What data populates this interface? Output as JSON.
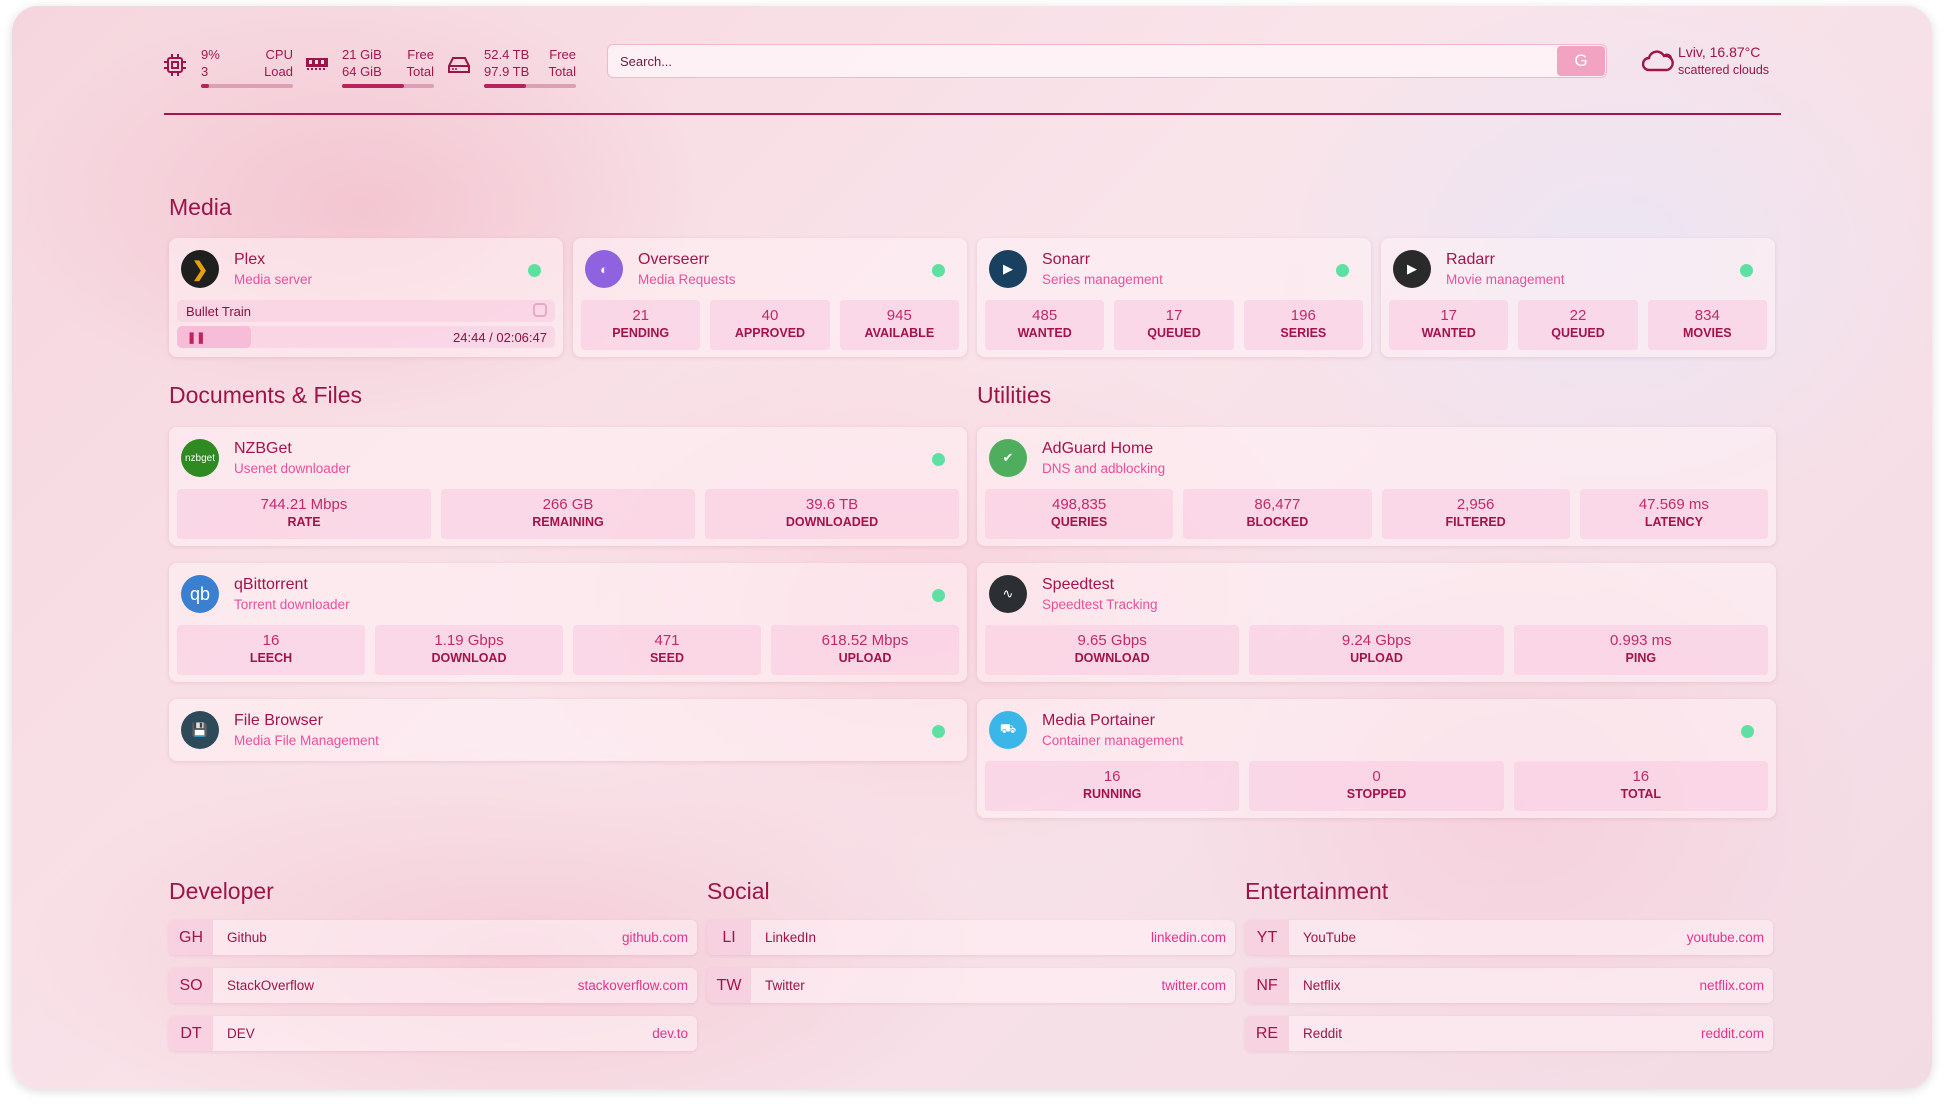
{
  "header": {
    "cpu": {
      "value": "9%",
      "value2": "3",
      "label": "CPU",
      "label2": "Load",
      "percent": 9
    },
    "memory": {
      "value": "21 GiB",
      "value2": "64 GiB",
      "label": "Free",
      "label2": "Total",
      "percent": 67
    },
    "disk": {
      "value": "52.4 TB",
      "value2": "97.9 TB",
      "label": "Free",
      "label2": "Total",
      "percent": 46
    },
    "search": {
      "placeholder": "Search...",
      "button": "G"
    },
    "weather": {
      "location": "Lviv, 16.87°C",
      "condition": "scattered clouds"
    }
  },
  "sections": {
    "media": "Media",
    "docs": "Documents & Files",
    "utilities": "Utilities",
    "developer": "Developer",
    "social": "Social",
    "entertainment": "Entertainment"
  },
  "media": [
    {
      "title": "Plex",
      "subtitle": "Media server",
      "icon": "plex-icon",
      "color": "#1f1f1f",
      "glyph": "❯",
      "status": "#5fe0a3",
      "now_playing": {
        "title": "Bullet Train",
        "time": "24:44 / 02:06:47",
        "progress": 19.5
      }
    },
    {
      "title": "Overseerr",
      "subtitle": "Media Requests",
      "icon": "overseerr-icon",
      "color": "#8f63e0",
      "glyph": "◐",
      "status": "#5fe0a3",
      "stats": [
        {
          "v": "21",
          "l": "PENDING"
        },
        {
          "v": "40",
          "l": "APPROVED"
        },
        {
          "v": "945",
          "l": "AVAILABLE"
        }
      ]
    },
    {
      "title": "Sonarr",
      "subtitle": "Series management",
      "icon": "sonarr-icon",
      "color": "#1a4060",
      "glyph": "▶",
      "status": "#5fe0a3",
      "stats": [
        {
          "v": "485",
          "l": "WANTED"
        },
        {
          "v": "17",
          "l": "QUEUED"
        },
        {
          "v": "196",
          "l": "SERIES"
        }
      ]
    },
    {
      "title": "Radarr",
      "subtitle": "Movie management",
      "icon": "radarr-icon",
      "color": "#2a2a2a",
      "glyph": "▶",
      "status": "#5fe0a3",
      "stats": [
        {
          "v": "17",
          "l": "WANTED"
        },
        {
          "v": "22",
          "l": "QUEUED"
        },
        {
          "v": "834",
          "l": "MOVIES"
        }
      ]
    }
  ],
  "docs": [
    {
      "title": "NZBGet",
      "subtitle": "Usenet downloader",
      "icon": "nzbget-icon",
      "color": "#2f8a22",
      "glyph": "nzbget",
      "status": "#5fe0a3",
      "stats": [
        {
          "v": "744.21 Mbps",
          "l": "RATE"
        },
        {
          "v": "266 GB",
          "l": "REMAINING"
        },
        {
          "v": "39.6 TB",
          "l": "DOWNLOADED"
        }
      ]
    },
    {
      "title": "qBittorrent",
      "subtitle": "Torrent downloader",
      "icon": "qbittorrent-icon",
      "color": "#3a7fd0",
      "glyph": "qb",
      "status": "#5fe0a3",
      "stats": [
        {
          "v": "16",
          "l": "LEECH"
        },
        {
          "v": "1.19 Gbps",
          "l": "DOWNLOAD"
        },
        {
          "v": "471",
          "l": "SEED"
        },
        {
          "v": "618.52 Mbps",
          "l": "UPLOAD"
        }
      ]
    },
    {
      "title": "File Browser",
      "subtitle": "Media File Management",
      "icon": "file-browser-icon",
      "color": "#2d4a5a",
      "glyph": "💾",
      "status": "#5fe0a3"
    }
  ],
  "utilities": [
    {
      "title": "AdGuard Home",
      "subtitle": "DNS and adblocking",
      "icon": "adguard-icon",
      "color": "#4fae5e",
      "glyph": "✔",
      "stats": [
        {
          "v": "498,835",
          "l": "QUERIES"
        },
        {
          "v": "86,477",
          "l": "BLOCKED"
        },
        {
          "v": "2,956",
          "l": "FILTERED"
        },
        {
          "v": "47.569 ms",
          "l": "LATENCY"
        }
      ]
    },
    {
      "title": "Speedtest",
      "subtitle": "Speedtest Tracking",
      "icon": "speedtest-icon",
      "color": "#2b2f33",
      "glyph": "∿",
      "stats": [
        {
          "v": "9.65 Gbps",
          "l": "DOWNLOAD"
        },
        {
          "v": "9.24 Gbps",
          "l": "UPLOAD"
        },
        {
          "v": "0.993 ms",
          "l": "PING"
        }
      ]
    },
    {
      "title": "Media Portainer",
      "subtitle": "Container management",
      "icon": "portainer-icon",
      "color": "#3bb6e8",
      "glyph": "⛟",
      "status": "#5fe0a3",
      "stats": [
        {
          "v": "16",
          "l": "RUNNING"
        },
        {
          "v": "0",
          "l": "STOPPED"
        },
        {
          "v": "16",
          "l": "TOTAL"
        }
      ]
    }
  ],
  "bookmarks": {
    "developer": [
      {
        "abbr": "GH",
        "name": "Github",
        "url": "github.com"
      },
      {
        "abbr": "SO",
        "name": "StackOverflow",
        "url": "stackoverflow.com"
      },
      {
        "abbr": "DT",
        "name": "DEV",
        "url": "dev.to"
      }
    ],
    "social": [
      {
        "abbr": "LI",
        "name": "LinkedIn",
        "url": "linkedin.com"
      },
      {
        "abbr": "TW",
        "name": "Twitter",
        "url": "twitter.com"
      }
    ],
    "entertainment": [
      {
        "abbr": "YT",
        "name": "YouTube",
        "url": "youtube.com"
      },
      {
        "abbr": "NF",
        "name": "Netflix",
        "url": "netflix.com"
      },
      {
        "abbr": "RE",
        "name": "Reddit",
        "url": "reddit.com"
      }
    ]
  }
}
